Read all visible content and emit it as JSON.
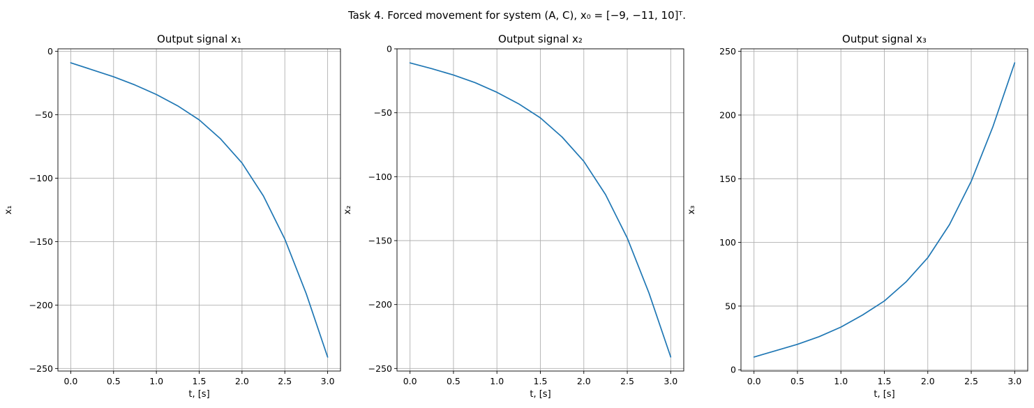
{
  "figure_title": "Task 4. Forced movement for system (A, C), x₀ = [−9, −11, 10]ᵀ.",
  "colors": {
    "series": "#1f77b4",
    "grid": "#b0b0b0"
  },
  "chart_data": [
    {
      "type": "line",
      "title": "Output signal x₁",
      "xlabel": "t, [s]",
      "ylabel": "x₁",
      "grid": true,
      "xlim": [
        -0.15,
        3.15
      ],
      "ylim": [
        -252,
        2
      ],
      "xticks": [
        0.0,
        0.5,
        1.0,
        1.5,
        2.0,
        2.5,
        3.0
      ],
      "xtick_labels": [
        "0.0",
        "0.5",
        "1.0",
        "1.5",
        "2.0",
        "2.5",
        "3.0"
      ],
      "yticks": [
        0,
        -50,
        -100,
        -150,
        -200,
        -250
      ],
      "ytick_labels": [
        "0",
        "−50",
        "−100",
        "−150",
        "−200",
        "−250"
      ],
      "series": [
        {
          "x": [
            0,
            0.25,
            0.5,
            0.75,
            1.0,
            1.25,
            1.5,
            1.75,
            2.0,
            2.25,
            2.5,
            2.75,
            3.0
          ],
          "y": [
            -9,
            -14.5,
            -20,
            -26.5,
            -34,
            -43,
            -54,
            -69,
            -88,
            -114,
            -148,
            -191,
            -241
          ]
        }
      ]
    },
    {
      "type": "line",
      "title": "Output signal x₂",
      "xlabel": "t, [s]",
      "ylabel": "x₂",
      "grid": true,
      "xlim": [
        -0.15,
        3.15
      ],
      "ylim": [
        -252,
        0
      ],
      "xticks": [
        0.0,
        0.5,
        1.0,
        1.5,
        2.0,
        2.5,
        3.0
      ],
      "xtick_labels": [
        "0.0",
        "0.5",
        "1.0",
        "1.5",
        "2.0",
        "2.5",
        "3.0"
      ],
      "yticks": [
        0,
        -50,
        -100,
        -150,
        -200,
        -250
      ],
      "ytick_labels": [
        "0",
        "−50",
        "−100",
        "−150",
        "−200",
        "−250"
      ],
      "series": [
        {
          "x": [
            0,
            0.25,
            0.5,
            0.75,
            1.0,
            1.25,
            1.5,
            1.75,
            2.0,
            2.25,
            2.5,
            2.75,
            3.0
          ],
          "y": [
            -11,
            -15.5,
            -20.5,
            -26.5,
            -34,
            -43,
            -54,
            -69,
            -88,
            -114,
            -148,
            -191,
            -241
          ]
        }
      ]
    },
    {
      "type": "line",
      "title": "Output signal x₃",
      "xlabel": "t, [s]",
      "ylabel": "x₃",
      "grid": true,
      "xlim": [
        -0.15,
        3.15
      ],
      "ylim": [
        -1,
        252
      ],
      "xticks": [
        0.0,
        0.5,
        1.0,
        1.5,
        2.0,
        2.5,
        3.0
      ],
      "xtick_labels": [
        "0.0",
        "0.5",
        "1.0",
        "1.5",
        "2.0",
        "2.5",
        "3.0"
      ],
      "yticks": [
        0,
        50,
        100,
        150,
        200,
        250
      ],
      "ytick_labels": [
        "0",
        "50",
        "100",
        "150",
        "200",
        "250"
      ],
      "series": [
        {
          "x": [
            0,
            0.25,
            0.5,
            0.75,
            1.0,
            1.25,
            1.5,
            1.75,
            2.0,
            2.25,
            2.5,
            2.75,
            3.0
          ],
          "y": [
            10,
            15,
            20,
            26,
            33.5,
            43,
            54,
            69,
            88,
            114,
            148,
            191,
            241
          ]
        }
      ]
    }
  ]
}
